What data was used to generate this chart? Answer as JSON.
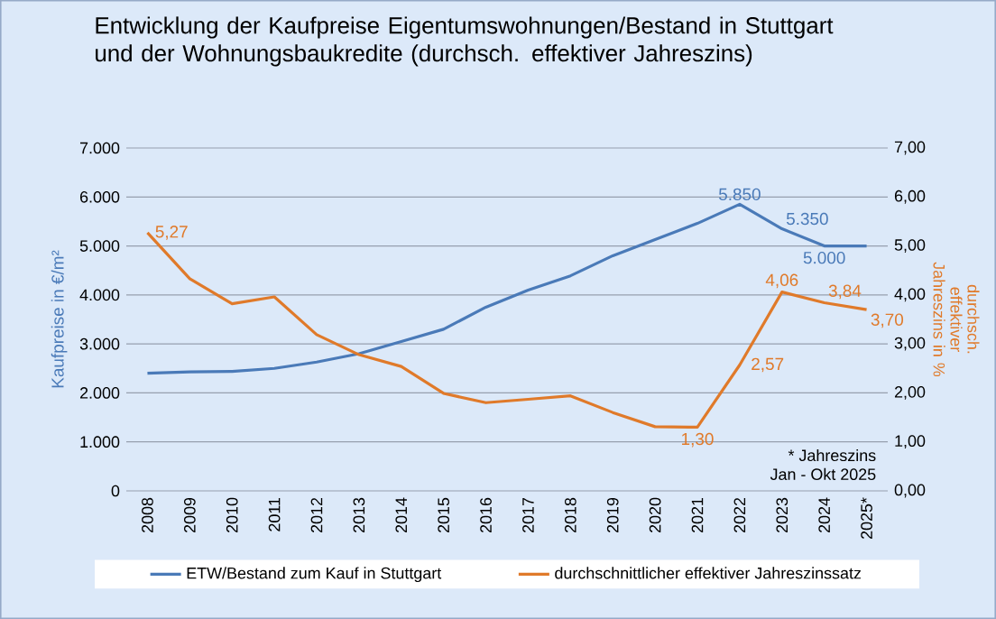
{
  "chart_data": {
    "type": "line",
    "title": "Entwicklung der Kaufpreise Eigentumswohnungen/Bestand in Stuttgart und der Wohnungsbaukredite (durchsch. effektiver Jahreszins)",
    "ylabel": "Kaufpreise in €/m²",
    "y2label": "durchsch. effektiver Jahreszins in %",
    "categories": [
      "2008",
      "2009",
      "2010",
      "2011",
      "2012",
      "2013",
      "2014",
      "2015",
      "2016",
      "2017",
      "2018",
      "2019",
      "2020",
      "2021",
      "2022",
      "2023",
      "2024",
      "2025*"
    ],
    "series": [
      {
        "name": "ETW/Bestand zum Kauf in Stuttgart",
        "color": "#4a7ab8",
        "values": [
          2400,
          2430,
          2440,
          2500,
          2630,
          2800,
          3050,
          3300,
          3750,
          4100,
          4390,
          4800,
          5130,
          5460,
          5850,
          5350,
          5000,
          5000
        ],
        "value_labels": [
          null,
          null,
          null,
          null,
          null,
          null,
          null,
          null,
          null,
          null,
          null,
          null,
          null,
          null,
          "5.850",
          "5.350",
          "5.000",
          null
        ]
      },
      {
        "name": "durchschnittlicher effektiver Jahreszinssatz",
        "color": "#e07a2a",
        "axis": "y2",
        "values": [
          5.27,
          4.33,
          3.82,
          3.96,
          3.19,
          2.78,
          2.54,
          1.99,
          1.8,
          1.87,
          1.94,
          1.6,
          1.31,
          1.3,
          2.57,
          4.06,
          3.84,
          3.7
        ],
        "value_labels": [
          "5,27",
          null,
          null,
          null,
          null,
          null,
          null,
          null,
          null,
          null,
          null,
          null,
          null,
          "1,30",
          "2,57",
          "4,06",
          "3,84",
          "3,70"
        ]
      }
    ],
    "ylim": [
      0,
      7000
    ],
    "yticks": [
      {
        "value": 0,
        "label": "0"
      },
      {
        "value": 1000,
        "label": "1.000"
      },
      {
        "value": 2000,
        "label": "2.000"
      },
      {
        "value": 3000,
        "label": "3.000"
      },
      {
        "value": 4000,
        "label": "4.000"
      },
      {
        "value": 5000,
        "label": "5.000"
      },
      {
        "value": 6000,
        "label": "6.000"
      },
      {
        "value": 7000,
        "label": "7.000"
      }
    ],
    "y2lim": [
      0,
      7
    ],
    "y2ticks": [
      {
        "value": 0,
        "label": "0,00"
      },
      {
        "value": 1,
        "label": "1,00"
      },
      {
        "value": 2,
        "label": "2,00"
      },
      {
        "value": 3,
        "label": "3,00"
      },
      {
        "value": 4,
        "label": "4,00"
      },
      {
        "value": 5,
        "label": "5,00"
      },
      {
        "value": 6,
        "label": "6,00"
      },
      {
        "value": 7,
        "label": "7,00"
      }
    ],
    "annotations": [
      "* Jahreszins",
      "Jan - Okt 2025"
    ],
    "grid": "y",
    "legend": "bottom",
    "marker": "none",
    "line_style": "solid"
  }
}
